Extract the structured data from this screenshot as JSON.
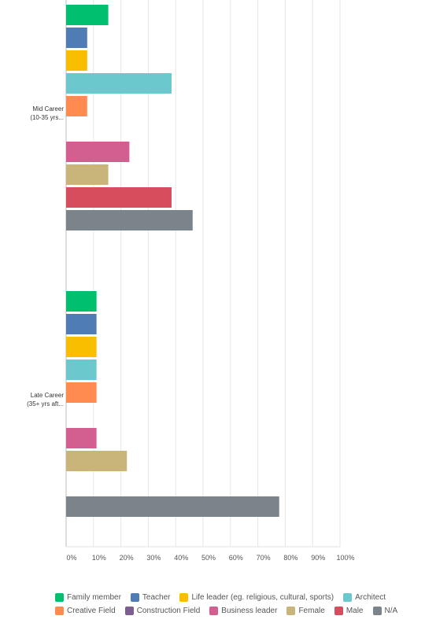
{
  "chart_data": {
    "type": "bar",
    "orientation": "horizontal",
    "title": "",
    "xlabel": "",
    "ylabel": "",
    "xlim": [
      0,
      100
    ],
    "x_ticks": [
      "0%",
      "10%",
      "20%",
      "30%",
      "40%",
      "50%",
      "60%",
      "70%",
      "80%",
      "90%",
      "100%"
    ],
    "grid": true,
    "legend_position": "bottom",
    "categories": [
      {
        "label": "Mid Career",
        "label2": "(10-35 yrs..."
      },
      {
        "label": "Late Career",
        "label2": "(35+ yrs aft..."
      }
    ],
    "series": [
      {
        "name": "Family member",
        "color": "#00bf6f",
        "values": [
          15.4,
          11.1
        ]
      },
      {
        "name": "Teacher",
        "color": "#507cb6",
        "values": [
          7.7,
          11.1
        ]
      },
      {
        "name": "Life leader (eg. religious, cultural, sports)",
        "color": "#f9be00",
        "values": [
          7.7,
          11.1
        ]
      },
      {
        "name": "Architect",
        "color": "#6bc8cd",
        "values": [
          38.5,
          11.1
        ]
      },
      {
        "name": "Creative Field",
        "color": "#ff8b4f",
        "values": [
          7.7,
          11.1
        ]
      },
      {
        "name": "Construction Field",
        "color": "#7d5e90",
        "values": [
          0,
          0
        ]
      },
      {
        "name": "Business leader",
        "color": "#d25f90",
        "values": [
          23.1,
          11.1
        ]
      },
      {
        "name": "Female",
        "color": "#c9b57a",
        "values": [
          15.4,
          22.2
        ]
      },
      {
        "name": "Male",
        "color": "#d74d5e",
        "values": [
          38.5,
          0
        ]
      },
      {
        "name": "N/A",
        "color": "#7b848b",
        "values": [
          46.2,
          77.8
        ]
      }
    ]
  }
}
